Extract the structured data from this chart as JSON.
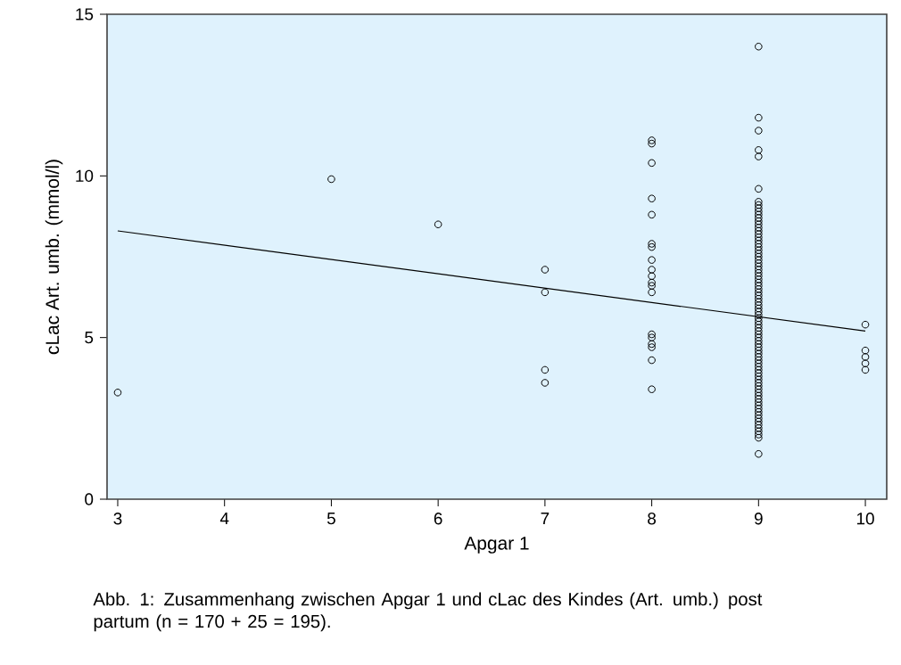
{
  "chart_data": {
    "type": "scatter",
    "xlabel": "Apgar 1",
    "ylabel": "cLac Art. umb. (mmol/l)",
    "xlim": [
      2.9,
      10.2
    ],
    "ylim": [
      0,
      15
    ],
    "xticks": [
      3,
      4,
      5,
      6,
      7,
      8,
      9,
      10
    ],
    "yticks": [
      0,
      5,
      10,
      15
    ],
    "marker": "circle",
    "grid": false,
    "series": [
      {
        "color": "#000000",
        "x": [
          3,
          5,
          6,
          7,
          7,
          7,
          7,
          8,
          8,
          8,
          8,
          8,
          8,
          8,
          8,
          8,
          8,
          8,
          8,
          8,
          8,
          8,
          8,
          8,
          8,
          8,
          9,
          9,
          9,
          9,
          9,
          9,
          9,
          9,
          9,
          9,
          9,
          9,
          9,
          9,
          9,
          9,
          9,
          9,
          9,
          9,
          9,
          9,
          9,
          9,
          9,
          9,
          9,
          9,
          9,
          9,
          9,
          9,
          9,
          9,
          9,
          9,
          9,
          9,
          9,
          9,
          9,
          9,
          9,
          9,
          9,
          9,
          9,
          9,
          9,
          9,
          9,
          9,
          9,
          9,
          9,
          9,
          9,
          9,
          9,
          9,
          9,
          9,
          9,
          9,
          9,
          9,
          9,
          9,
          9,
          9,
          9,
          9,
          9,
          9,
          9,
          9,
          9,
          9,
          9,
          9,
          9,
          10,
          10,
          10,
          10,
          10
        ],
        "values": [
          3.3,
          9.9,
          8.5,
          7.1,
          6.4,
          4.0,
          3.6,
          11.1,
          11.0,
          10.4,
          9.3,
          8.8,
          7.9,
          7.8,
          7.4,
          7.1,
          6.9,
          6.7,
          6.6,
          6.4,
          5.1,
          5.0,
          4.8,
          4.7,
          4.3,
          3.4,
          14.0,
          11.8,
          11.4,
          10.8,
          10.6,
          9.6,
          9.2,
          9.1,
          9.0,
          8.9,
          8.8,
          8.7,
          8.6,
          8.5,
          8.4,
          8.3,
          8.2,
          8.1,
          8.0,
          7.9,
          7.8,
          7.7,
          7.6,
          7.5,
          7.4,
          7.3,
          7.2,
          7.1,
          7.0,
          6.9,
          6.8,
          6.7,
          6.6,
          6.5,
          6.4,
          6.3,
          6.2,
          6.1,
          6.0,
          5.9,
          5.8,
          5.7,
          5.6,
          5.5,
          5.4,
          5.3,
          5.2,
          5.1,
          5.0,
          4.9,
          4.8,
          4.7,
          4.6,
          4.5,
          4.4,
          4.3,
          4.2,
          4.1,
          4.0,
          3.9,
          3.8,
          3.7,
          3.6,
          3.5,
          3.4,
          3.3,
          3.2,
          3.1,
          3.0,
          2.9,
          2.8,
          2.7,
          2.6,
          2.5,
          2.4,
          2.3,
          2.2,
          2.1,
          2.0,
          1.9,
          1.4,
          5.4,
          4.6,
          4.4,
          4.2,
          4.0
        ]
      },
      {
        "type": "line",
        "marker": "none",
        "color": "#000000",
        "x": [
          3,
          10
        ],
        "values": [
          8.3,
          5.2
        ]
      }
    ],
    "annotations": [
      "Abb. 1: Zusammenhang zwischen Apgar 1 und cLac des Kindes (Art. umb.) post partum (n = 170 + 25 = 195)."
    ]
  }
}
